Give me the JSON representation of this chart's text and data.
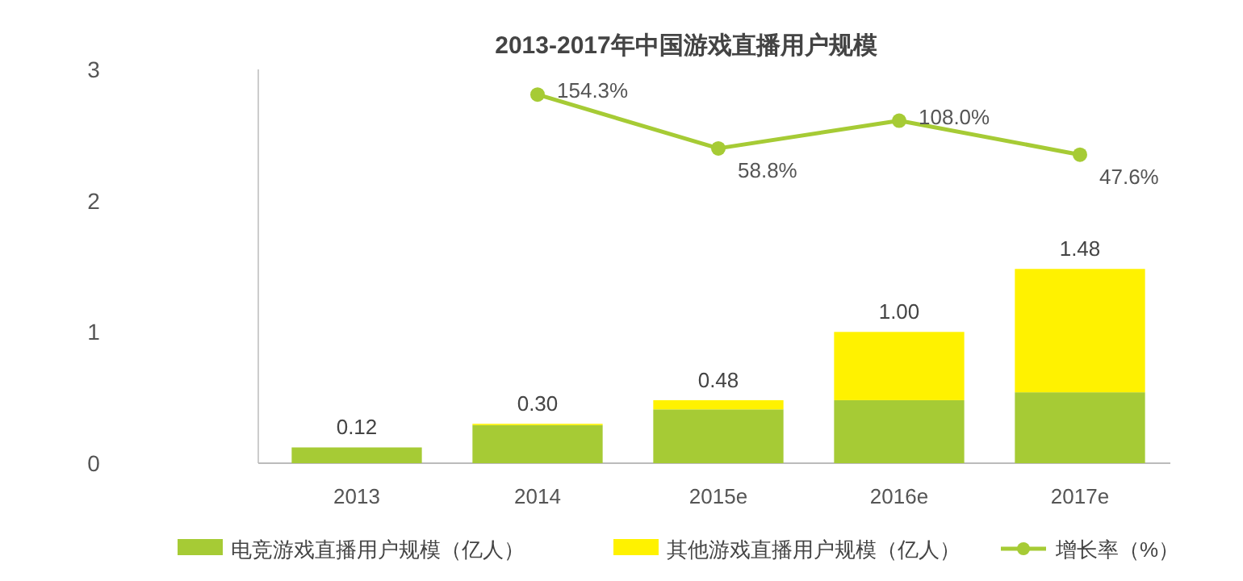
{
  "chart_data": {
    "type": "bar",
    "title": "2013-2017年中国游戏直播用户规模",
    "categories": [
      "2013",
      "2014",
      "2015e",
      "2016e",
      "2017e"
    ],
    "stacked": true,
    "series": [
      {
        "name": "电竞游戏直播用户规模（亿人）",
        "color": "#a6cb35",
        "values": [
          0.12,
          0.29,
          0.41,
          0.48,
          0.54
        ]
      },
      {
        "name": "其他游戏直播用户规模（亿人）",
        "color": "#fff200",
        "values": [
          0,
          0.01,
          0.07,
          0.52,
          0.94
        ]
      },
      {
        "name": "增长率（%）",
        "type": "line",
        "axis": "y2",
        "marker": "circle",
        "color": "#a6cb35",
        "values": [
          null,
          154.3,
          58.8,
          108.0,
          47.6
        ],
        "value_labels": [
          null,
          "154.3%",
          "58.8%",
          "108.0%",
          "47.6%"
        ]
      }
    ],
    "totals": [
      "0.12",
      "0.30",
      "0.48",
      "1.00",
      "1.48"
    ],
    "ylim": [
      0,
      3
    ],
    "yticks": [
      0,
      1,
      2,
      3
    ],
    "y2lim": [
      -500,
      199
    ],
    "legend": "bottom"
  }
}
